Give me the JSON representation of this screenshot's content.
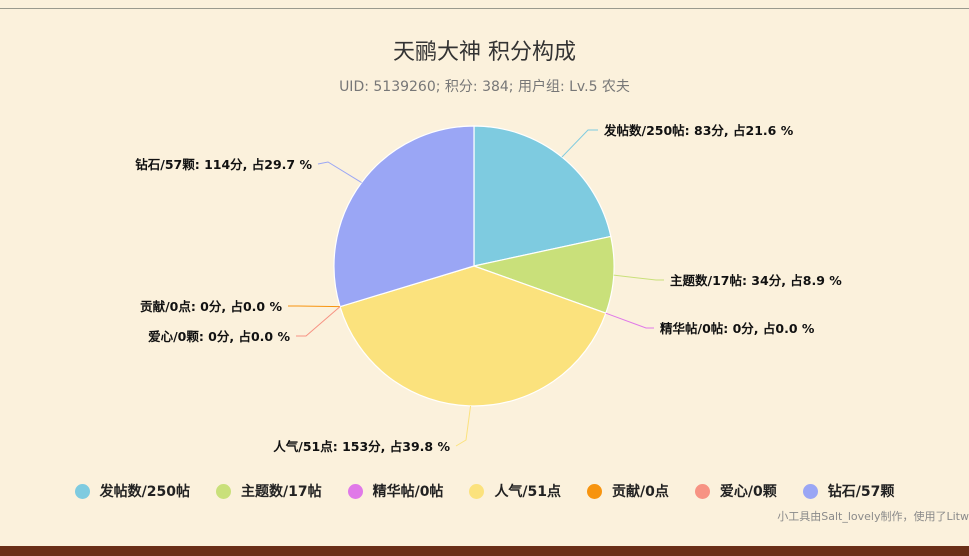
{
  "chart_data": {
    "type": "pie",
    "title": "天鹂大神 积分构成",
    "subtitle": "UID: 5139260; 积分: 384; 用户组: Lv.5 农夫",
    "legend_position": "bottom",
    "slices": [
      {
        "name": "发帖数/250帖",
        "value": 83,
        "label": "发帖数/250帖: 83分, 占21.6 %",
        "color": "#7ecbe0"
      },
      {
        "name": "主题数/17帖",
        "value": 34,
        "label": "主题数/17帖: 34分, 占8.9 %",
        "color": "#c9e07a"
      },
      {
        "name": "精华帖/0帖",
        "value": 0,
        "label": "精华帖/0帖: 0分, 占0.0 %",
        "color": "#e079e8"
      },
      {
        "name": "人气/51点",
        "value": 153,
        "label": "人气/51点: 153分, 占39.8 %",
        "color": "#fbe27d"
      },
      {
        "name": "贡献/0点",
        "value": 0,
        "label": "贡献/0点: 0分, 占0.0 %",
        "color": "#f7940f"
      },
      {
        "name": "爱心/0颗",
        "value": 0,
        "label": "爱心/0颗: 0分, 占0.0 %",
        "color": "#f79383"
      },
      {
        "name": "钻石/57颗",
        "value": 114,
        "label": "钻石/57颗: 114分, 占29.7 %",
        "color": "#9aa6f5"
      }
    ]
  },
  "footer": {
    "credit": "小工具由Salt_lovely制作，使用了Litw"
  }
}
